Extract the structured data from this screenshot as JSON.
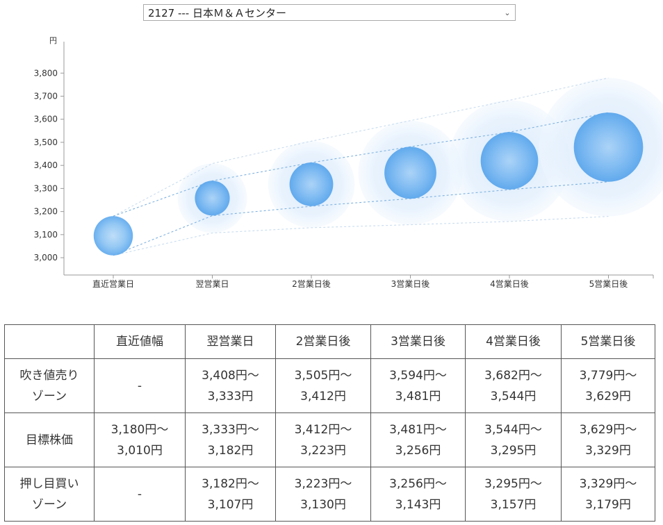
{
  "selector": {
    "value": "2127 --- 日本Ｍ＆Ａセンター",
    "chevron_icon": "chevron-down-icon"
  },
  "chart_data": {
    "type": "scatter",
    "unit": "円",
    "categories": [
      "直近営業日",
      "翌営業日",
      "2営業日後",
      "3営業日後",
      "4営業日後",
      "5営業日後"
    ],
    "y_ticks": [
      "3,000",
      "3,100",
      "3,200",
      "3,300",
      "3,400",
      "3,500",
      "3,600",
      "3,700",
      "3,800"
    ],
    "ylim": [
      2925,
      3870
    ],
    "center": [
      3095,
      3258,
      3318,
      3368,
      3420,
      3479
    ],
    "target_band": {
      "upper": [
        3180,
        3333,
        3412,
        3481,
        3544,
        3629
      ],
      "lower": [
        3010,
        3182,
        3223,
        3256,
        3295,
        3329
      ]
    },
    "outer_band": {
      "upper": [
        3180,
        3408,
        3505,
        3594,
        3682,
        3779
      ],
      "lower": [
        3010,
        3107,
        3130,
        3143,
        3157,
        3179
      ]
    },
    "colors": {
      "core": "#5fa9ee",
      "halo": "#cfe5fb",
      "line": "#7fb2e0",
      "outer_line": "#c8dcef",
      "axis": "#999999"
    },
    "grid": false,
    "legend": "none"
  },
  "table": {
    "headers": [
      "",
      "直近値幅",
      "翌営業日",
      "2営業日後",
      "3営業日後",
      "4営業日後",
      "5営業日後"
    ],
    "rows": [
      {
        "label": [
          "吹き値売り",
          "ゾーン"
        ],
        "cells": [
          [
            "-"
          ],
          [
            "3,408円～",
            "3,333円"
          ],
          [
            "3,505円～",
            "3,412円"
          ],
          [
            "3,594円～",
            "3,481円"
          ],
          [
            "3,682円～",
            "3,544円"
          ],
          [
            "3,779円～",
            "3,629円"
          ]
        ]
      },
      {
        "label": [
          "目標株価"
        ],
        "cells": [
          [
            "3,180円～",
            "3,010円"
          ],
          [
            "3,333円～",
            "3,182円"
          ],
          [
            "3,412円～",
            "3,223円"
          ],
          [
            "3,481円～",
            "3,256円"
          ],
          [
            "3,544円～",
            "3,295円"
          ],
          [
            "3,629円～",
            "3,329円"
          ]
        ]
      },
      {
        "label": [
          "押し目買い",
          "ゾーン"
        ],
        "cells": [
          [
            "-"
          ],
          [
            "3,182円～",
            "3,107円"
          ],
          [
            "3,223円～",
            "3,130円"
          ],
          [
            "3,256円～",
            "3,143円"
          ],
          [
            "3,295円～",
            "3,157円"
          ],
          [
            "3,329円～",
            "3,179円"
          ]
        ]
      }
    ]
  }
}
